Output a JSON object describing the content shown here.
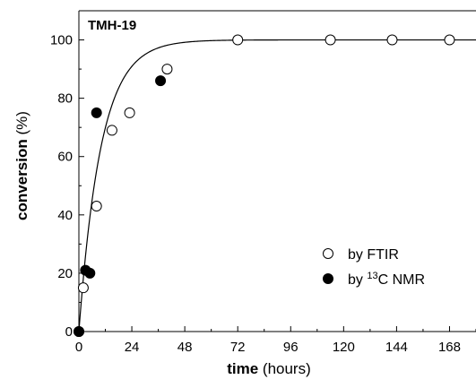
{
  "chart_data": {
    "type": "scatter",
    "panel_label": "TMH-19",
    "xlabel": {
      "bold": "time",
      "normal": " (hours)"
    },
    "ylabel": {
      "bold": "conversion",
      "normal": " (%)"
    },
    "xlim": [
      0,
      180
    ],
    "ylim": [
      0,
      110
    ],
    "xticks": [
      0,
      24,
      48,
      72,
      96,
      120,
      144,
      168
    ],
    "yticks": [
      0,
      20,
      40,
      60,
      80,
      100
    ],
    "grid": false,
    "legend_position": "bottom-right",
    "series": [
      {
        "name": "by FTIR",
        "marker": "open-circle",
        "x": [
          0,
          2,
          8,
          15,
          23,
          40,
          72,
          114,
          142,
          168
        ],
        "y": [
          0,
          15,
          43,
          69,
          75,
          90,
          100,
          100,
          100,
          100
        ]
      },
      {
        "name_prefix": "by ",
        "name_sup": "13",
        "name_suffix": "C NMR",
        "marker": "filled-circle",
        "x": [
          0,
          3,
          5,
          8,
          37
        ],
        "y": [
          0,
          21,
          20,
          75,
          86
        ]
      }
    ],
    "fit_curve": {
      "type": "line",
      "model": "100*(1-exp(-t/tau))",
      "tau": 10
    }
  }
}
